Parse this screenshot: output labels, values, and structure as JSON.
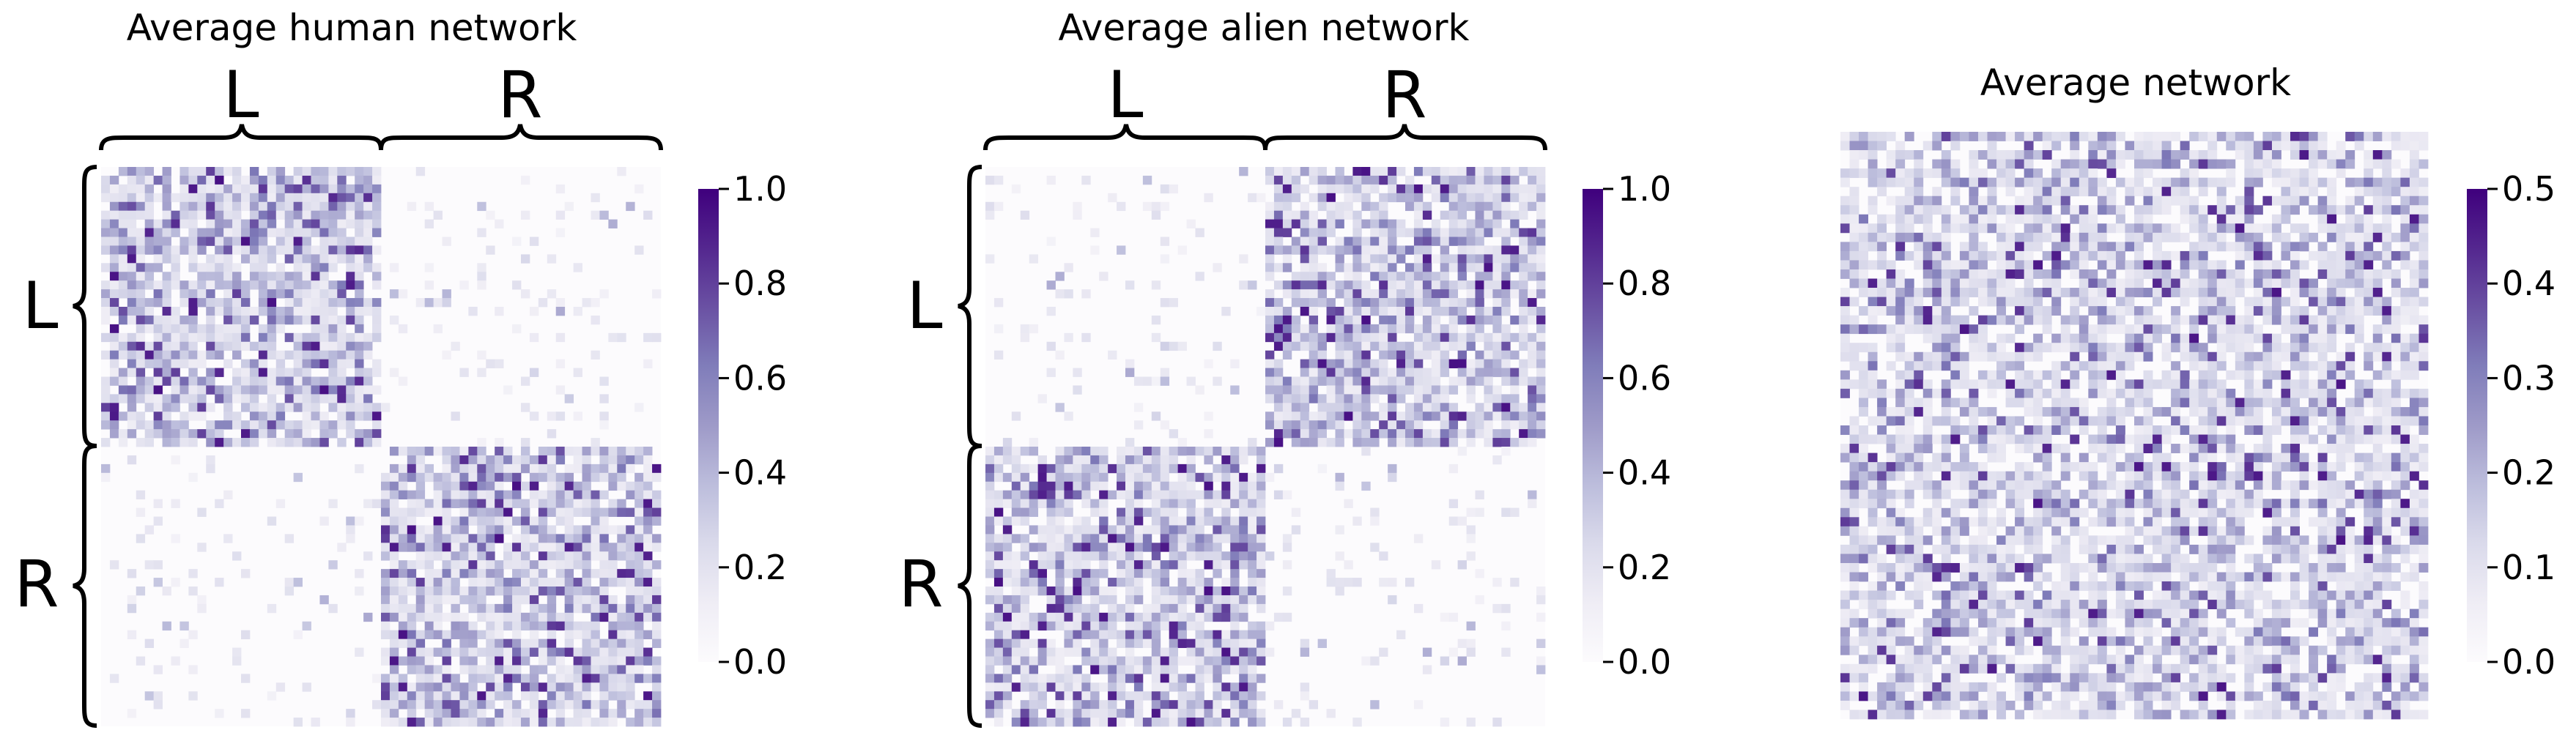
{
  "chart_data": [
    {
      "type": "heatmap",
      "title": "Average human network",
      "block_labels": [
        "L",
        "R"
      ],
      "colormap": "Purples",
      "vlim": [
        0,
        1.0
      ],
      "colorbar_ticks": [
        "0.0",
        "0.2",
        "0.4",
        "0.6",
        "0.8",
        "1.0"
      ],
      "grid_size": 64,
      "block_structure": "dense within L–L and R–R blocks, sparse in L–R and R–L blocks",
      "mean_value_dense_block": 0.27,
      "mean_value_sparse_block": 0.02
    },
    {
      "type": "heatmap",
      "title": "Average alien network",
      "block_labels": [
        "L",
        "R"
      ],
      "colormap": "Purples",
      "vlim": [
        0,
        1.0
      ],
      "colorbar_ticks": [
        "0.0",
        "0.2",
        "0.4",
        "0.6",
        "0.8",
        "1.0"
      ],
      "grid_size": 64,
      "block_structure": "dense in L–R and R–L blocks, sparse within L–L and R–R blocks",
      "mean_value_dense_block": 0.27,
      "mean_value_sparse_block": 0.02
    },
    {
      "type": "heatmap",
      "title": "Average network",
      "block_labels": [],
      "colormap": "Purples",
      "vlim": [
        0,
        0.5
      ],
      "colorbar_ticks": [
        "0.0",
        "0.1",
        "0.2",
        "0.3",
        "0.4",
        "0.5"
      ],
      "grid_size": 64,
      "block_structure": "uniform",
      "mean_value": 0.14
    }
  ]
}
